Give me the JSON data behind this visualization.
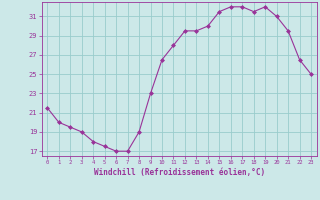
{
  "x": [
    0,
    1,
    2,
    3,
    4,
    5,
    6,
    7,
    8,
    9,
    10,
    11,
    12,
    13,
    14,
    15,
    16,
    17,
    18,
    19,
    20,
    21,
    22,
    23
  ],
  "y": [
    21.5,
    20.0,
    19.5,
    19.0,
    18.0,
    17.5,
    17.0,
    17.0,
    19.0,
    23.0,
    26.5,
    28.0,
    29.5,
    29.5,
    30.0,
    31.5,
    32.0,
    32.0,
    31.5,
    32.0,
    31.0,
    29.5,
    26.5,
    25.0
  ],
  "xlim": [
    -0.5,
    23.5
  ],
  "ylim": [
    16.5,
    32.5
  ],
  "yticks": [
    17,
    19,
    21,
    23,
    25,
    27,
    29,
    31
  ],
  "xticks": [
    0,
    1,
    2,
    3,
    4,
    5,
    6,
    7,
    8,
    9,
    10,
    11,
    12,
    13,
    14,
    15,
    16,
    17,
    18,
    19,
    20,
    21,
    22,
    23
  ],
  "xlabel": "Windchill (Refroidissement éolien,°C)",
  "line_color": "#993399",
  "marker": "D",
  "marker_size": 2.0,
  "bg_color": "#cce8e8",
  "grid_color": "#99cccc",
  "axis_color": "#993399",
  "tick_color": "#993399",
  "label_color": "#993399",
  "tick_fontsize": 4.0,
  "xlabel_fontsize": 5.5
}
